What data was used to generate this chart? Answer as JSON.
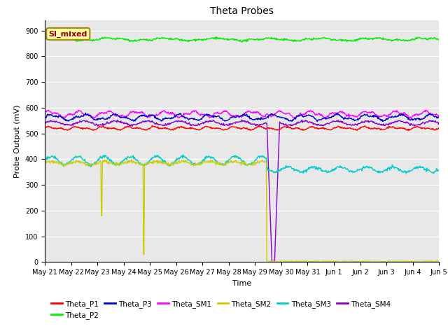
{
  "title": "Theta Probes",
  "ylabel": "Probe Output (mV)",
  "xlabel": "Time",
  "background_color": "#ffffff",
  "plot_bg_color": "#e8e8e8",
  "ylim": [
    0,
    940
  ],
  "yticks": [
    0,
    100,
    200,
    300,
    400,
    500,
    600,
    700,
    800,
    900
  ],
  "annotation_text": "SI_mixed",
  "x_tick_labels": [
    "May 21",
    "May 22",
    "May 23",
    "May 24",
    "May 25",
    "May 26",
    "May 27",
    "May 28",
    "May 29",
    "May 30",
    "May 31",
    "Jun 1",
    "Jun 2",
    "Jun 3",
    "Jun 4",
    "Jun 5"
  ],
  "colors": {
    "Theta_P1": "#ff0000",
    "Theta_P2": "#00ee00",
    "Theta_P3": "#0000cc",
    "Theta_SM1": "#ff00ff",
    "Theta_SM2": "#cccc00",
    "Theta_SM3": "#00cccc",
    "Theta_SM4": "#8800cc"
  },
  "legend_order": [
    "Theta_P1",
    "Theta_P2",
    "Theta_P3",
    "Theta_SM1",
    "Theta_SM2",
    "Theta_SM3",
    "Theta_SM4"
  ]
}
